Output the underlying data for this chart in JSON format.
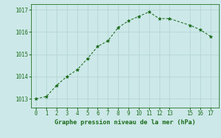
{
  "x": [
    0,
    1,
    2,
    3,
    4,
    5,
    6,
    7,
    8,
    9,
    10,
    11,
    12,
    13,
    15,
    16,
    17
  ],
  "y": [
    1013.0,
    1013.1,
    1013.6,
    1014.0,
    1014.3,
    1014.8,
    1015.35,
    1015.6,
    1016.2,
    1016.5,
    1016.7,
    1016.9,
    1016.6,
    1016.6,
    1016.3,
    1016.1,
    1015.8
  ],
  "line_color": "#1a6b1a",
  "marker": "*",
  "marker_size": 3.5,
  "bg_color": "#cce8e8",
  "grid_color": "#b0d0d0",
  "xlabel": "Graphe pression niveau de la mer (hPa)",
  "xlabel_color": "#1a6b1a",
  "xlabel_fontsize": 6.5,
  "tick_color": "#1a6b1a",
  "tick_fontsize": 5.5,
  "yticks": [
    1013,
    1014,
    1015,
    1016,
    1017
  ],
  "xticks": [
    0,
    1,
    2,
    3,
    4,
    5,
    6,
    7,
    8,
    9,
    10,
    11,
    12,
    13,
    15,
    16,
    17
  ],
  "ylim": [
    1012.6,
    1017.25
  ],
  "xlim": [
    -0.5,
    17.8
  ],
  "linewidth": 0.8
}
